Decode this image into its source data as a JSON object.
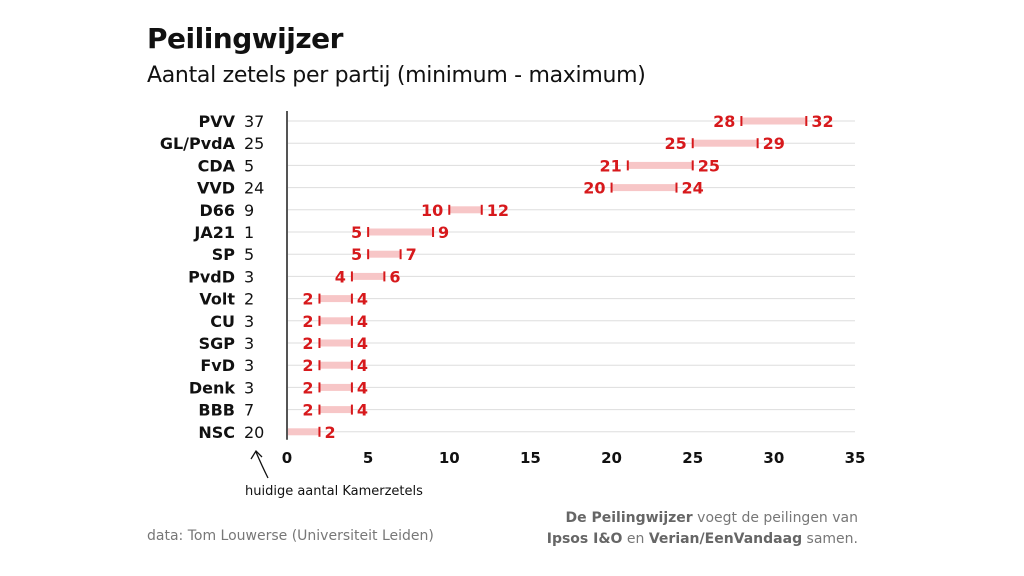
{
  "header": {
    "title": "Peilingwijzer",
    "subtitle": "Aantal zetels per partij (minimum - maximum)"
  },
  "footer": {
    "source": "data: Tom Louwerse (Universiteit Leiden)",
    "note_bold_1": "De Peilingwijzer",
    "note_text_1": " voegt de peilingen van",
    "note_bold_2": "Ipsos I&O",
    "note_text_2": " en ",
    "note_bold_3": "Verian/EenVandaag",
    "note_text_3": " samen."
  },
  "annotation": "huidige aantal Kamerzetels",
  "colors": {
    "accent": "#d7191c",
    "range": "#f7c6c7",
    "grid": "#dddddd",
    "axis": "#555555"
  },
  "chart_data": {
    "type": "range-bar",
    "title": "Peilingwijzer",
    "subtitle": "Aantal zetels per partij (minimum - maximum)",
    "xlim": [
      0,
      35
    ],
    "xticks": [
      0,
      5,
      10,
      15,
      20,
      25,
      30,
      35
    ],
    "grid": true,
    "categories": [
      "PVV",
      "GL/PvdA",
      "CDA",
      "VVD",
      "D66",
      "JA21",
      "SP",
      "PvdD",
      "Volt",
      "CU",
      "SGP",
      "FvD",
      "Denk",
      "BBB",
      "NSC"
    ],
    "current_seats": [
      37,
      25,
      5,
      24,
      9,
      1,
      5,
      3,
      2,
      3,
      3,
      3,
      3,
      7,
      20
    ],
    "min": [
      28,
      25,
      21,
      20,
      10,
      5,
      5,
      4,
      2,
      2,
      2,
      2,
      2,
      2,
      0
    ],
    "max": [
      32,
      29,
      25,
      24,
      12,
      9,
      7,
      6,
      4,
      4,
      4,
      4,
      4,
      4,
      2
    ],
    "min_labels": [
      "28",
      "25",
      "21",
      "20",
      "10",
      "5",
      "5",
      "4",
      "2",
      "2",
      "2",
      "2",
      "2",
      "2",
      ""
    ],
    "max_labels": [
      "32",
      "29",
      "25",
      "24",
      "12",
      "9",
      "7",
      "6",
      "4",
      "4",
      "4",
      "4",
      "4",
      "4",
      "2"
    ]
  }
}
